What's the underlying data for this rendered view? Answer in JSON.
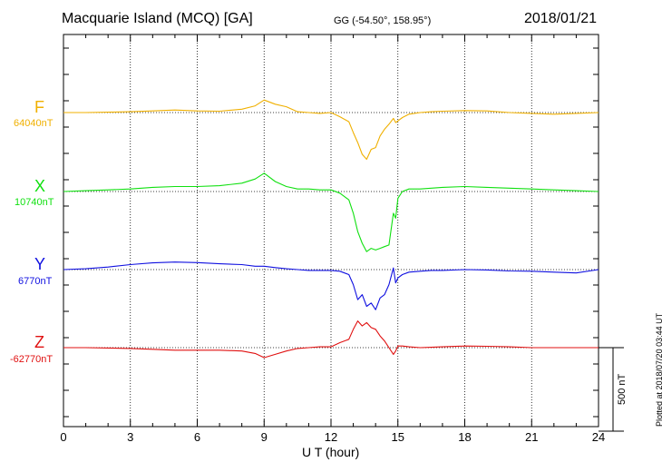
{
  "header": {
    "title": "Macquarie Island (MCQ)  [GA]",
    "coords": "GG (-54.50°, 158.95°)",
    "date": "2018/01/21"
  },
  "side_note": "Plotted at 2018/07/20 03:44 UT",
  "scale_label": "500 nT",
  "chart_data": {
    "type": "line",
    "xlabel": "U T (hour)",
    "xlim": [
      0,
      24
    ],
    "xticks": [
      0,
      3,
      6,
      9,
      12,
      15,
      18,
      21,
      24
    ],
    "scale_bar_nT": 500,
    "grid": true,
    "series": [
      {
        "name": "F",
        "baseline_label": "64040nT",
        "color": "#f0b000",
        "baseline": 64040,
        "x": [
          0,
          1,
          2,
          3,
          4,
          5,
          6,
          7,
          8,
          8.6,
          9,
          9.5,
          10,
          10.5,
          11,
          11.5,
          12,
          12.4,
          12.8,
          13,
          13.2,
          13.4,
          13.6,
          13.8,
          14,
          14.2,
          14.4,
          14.6,
          14.8,
          14.9,
          15,
          15.2,
          15.5,
          16,
          16.5,
          17,
          18,
          19,
          20,
          21,
          22,
          23,
          24
        ],
        "y": [
          64040,
          64040,
          64042,
          64045,
          64050,
          64055,
          64050,
          64048,
          64060,
          64080,
          64115,
          64090,
          64075,
          64045,
          64040,
          64035,
          64040,
          64015,
          63985,
          63920,
          63860,
          63790,
          63760,
          63820,
          63830,
          63900,
          63940,
          63970,
          64005,
          63980,
          63990,
          64010,
          64030,
          64040,
          64045,
          64048,
          64052,
          64050,
          64040,
          64035,
          64030,
          64035,
          64040
        ]
      },
      {
        "name": "X",
        "baseline_label": "10740nT",
        "color": "#10e010",
        "baseline": 10740,
        "x": [
          0,
          1,
          2,
          3,
          4,
          5,
          6,
          7,
          8,
          8.6,
          9,
          9.5,
          10,
          10.5,
          11,
          11.5,
          12,
          12.4,
          12.8,
          13,
          13.2,
          13.4,
          13.6,
          13.8,
          14,
          14.2,
          14.4,
          14.6,
          14.8,
          14.9,
          15,
          15.2,
          15.5,
          16,
          16.5,
          17,
          18,
          19,
          20,
          21,
          22,
          23,
          24
        ],
        "y": [
          10740,
          10745,
          10750,
          10755,
          10765,
          10770,
          10770,
          10775,
          10790,
          10815,
          10850,
          10800,
          10770,
          10755,
          10755,
          10750,
          10750,
          10730,
          10690,
          10610,
          10500,
          10430,
          10380,
          10400,
          10390,
          10400,
          10410,
          10420,
          10610,
          10580,
          10700,
          10740,
          10755,
          10755,
          10760,
          10765,
          10770,
          10765,
          10760,
          10755,
          10750,
          10745,
          10740
        ]
      },
      {
        "name": "Y",
        "baseline_label": "6770nT",
        "color": "#1010e0",
        "baseline": 6770,
        "x": [
          0,
          1,
          2,
          3,
          4,
          5,
          6,
          7,
          8,
          8.6,
          9,
          9.5,
          10,
          10.5,
          11,
          11.5,
          12,
          12.4,
          12.8,
          13,
          13.2,
          13.4,
          13.6,
          13.8,
          14,
          14.2,
          14.4,
          14.6,
          14.8,
          14.9,
          15,
          15.2,
          15.5,
          16,
          16.5,
          17,
          18,
          19,
          20,
          21,
          22,
          23,
          24
        ],
        "y": [
          6770,
          6775,
          6785,
          6800,
          6810,
          6815,
          6812,
          6805,
          6800,
          6790,
          6790,
          6782,
          6775,
          6770,
          6765,
          6765,
          6765,
          6760,
          6740,
          6680,
          6590,
          6620,
          6550,
          6570,
          6530,
          6600,
          6620,
          6680,
          6780,
          6690,
          6720,
          6740,
          6755,
          6760,
          6765,
          6765,
          6770,
          6768,
          6762,
          6760,
          6755,
          6750,
          6770
        ]
      },
      {
        "name": "Z",
        "baseline_label": "-62770nT",
        "color": "#e01010",
        "baseline": -62770,
        "x": [
          0,
          1,
          2,
          3,
          4,
          5,
          6,
          7,
          8,
          8.6,
          9,
          9.5,
          10,
          10.5,
          11,
          11.5,
          12,
          12.4,
          12.8,
          13,
          13.2,
          13.4,
          13.6,
          13.8,
          14,
          14.2,
          14.4,
          14.6,
          14.8,
          14.9,
          15,
          15.2,
          15.5,
          16,
          16.5,
          17,
          18,
          19,
          20,
          21,
          22,
          23,
          24
        ],
        "y": [
          -62770,
          -62770,
          -62772,
          -62775,
          -62780,
          -62785,
          -62785,
          -62785,
          -62790,
          -62805,
          -62830,
          -62810,
          -62790,
          -62775,
          -62770,
          -62765,
          -62765,
          -62740,
          -62720,
          -62660,
          -62610,
          -62640,
          -62620,
          -62650,
          -62660,
          -62700,
          -62730,
          -62770,
          -62810,
          -62790,
          -62760,
          -62760,
          -62765,
          -62770,
          -62768,
          -62765,
          -62760,
          -62762,
          -62765,
          -62770,
          -62770,
          -62770,
          -62770
        ]
      }
    ]
  }
}
